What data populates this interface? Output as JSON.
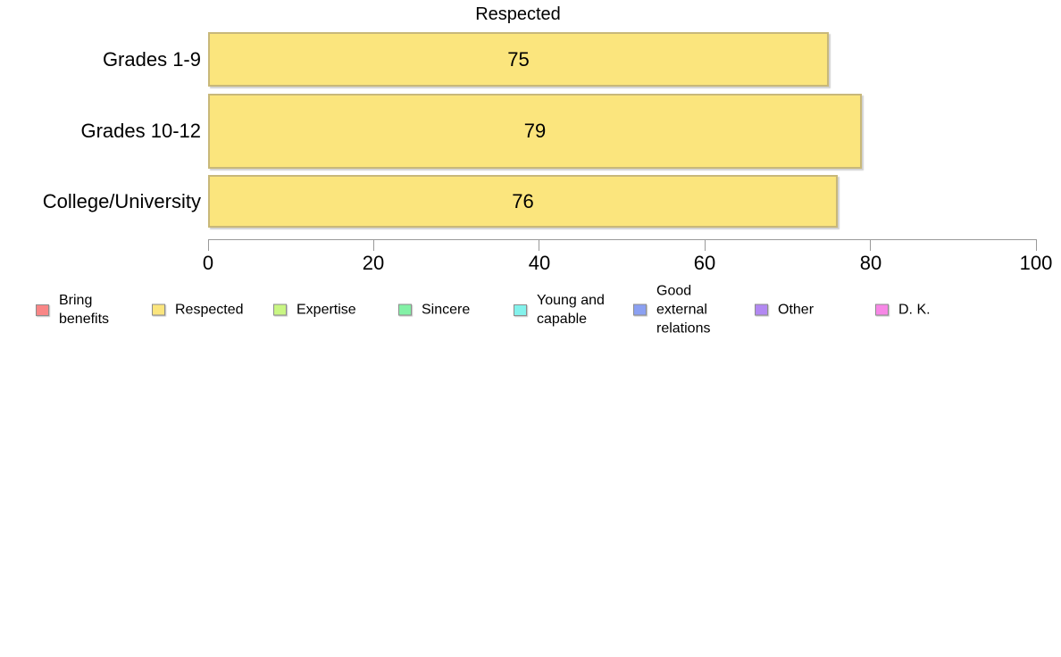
{
  "chart_data": {
    "type": "bar",
    "orientation": "horizontal",
    "title": "Respected",
    "categories": [
      "Grades 1-9",
      "Grades 10-12",
      "College/University"
    ],
    "values": [
      75,
      79,
      76
    ],
    "xlabel": "",
    "ylabel": "",
    "xlim": [
      0,
      100
    ],
    "x_ticks": [
      "0",
      "20",
      "40",
      "60",
      "80",
      "100"
    ],
    "x_tick_values": [
      0,
      20,
      40,
      60,
      80,
      100
    ],
    "grid": false,
    "bar_color": "#fbe57d",
    "bar_border_color": "#c8b87a",
    "axis_color": "#999999",
    "legend_position": "bottom",
    "legend": [
      {
        "label": "Bring benefits",
        "color": "#f98686"
      },
      {
        "label": "Respected",
        "color": "#fbe57d"
      },
      {
        "label": "Expertise",
        "color": "#c9f683"
      },
      {
        "label": "Sincere",
        "color": "#83f1a6"
      },
      {
        "label": "Young and capable",
        "color": "#83f2ec"
      },
      {
        "label": "Good external relations",
        "color": "#8ba0f2"
      },
      {
        "label": "Other",
        "color": "#b288f2"
      },
      {
        "label": "D. K.",
        "color": "#f787e6"
      }
    ]
  }
}
